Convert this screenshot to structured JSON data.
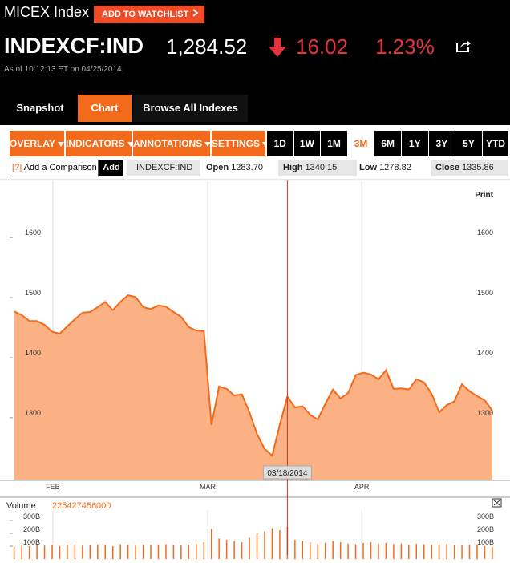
{
  "header": {
    "title": "MICEX Index",
    "watchlist_button": "ADD TO WATCHLIST",
    "ticker": "INDEXCF:IND",
    "price": "1,284.52",
    "change": "16.02",
    "change_pct": "1.23%",
    "timestamp": "As of 10:12:13 ET on 04/25/2014."
  },
  "tabs": [
    "Snapshot",
    "Chart",
    "Browse All Indexes"
  ],
  "toolbar": {
    "menus": [
      "OVERLAY",
      "INDICATORS",
      "ANNOTATIONS",
      "SETTINGS"
    ],
    "ranges": [
      "1D",
      "1W",
      "1M",
      "3M",
      "6M",
      "1Y",
      "3Y",
      "5Y",
      "YTD"
    ]
  },
  "comparison": {
    "help": "[?]",
    "placeholder": "Add a Comparison",
    "button": "Add",
    "symbol": "INDEXCF:IND"
  },
  "quote": {
    "open_label": "Open",
    "open": "1283.70",
    "high_label": "High",
    "high": "1340.15",
    "low_label": "Low",
    "low": "1278.82",
    "close_label": "Close",
    "close": "1335.86"
  },
  "chart": {
    "type": "area",
    "print_label": "Print",
    "color": "#f26a1b",
    "fill": "#fbb183",
    "values": [
      1477,
      1471,
      1461,
      1461,
      1455,
      1443,
      1440,
      1452,
      1464,
      1475,
      1476,
      1484,
      1493,
      1479,
      1493,
      1504,
      1501,
      1484,
      1481,
      1487,
      1485,
      1476,
      1468,
      1451,
      1445,
      1444,
      1288,
      1352,
      1348,
      1337,
      1339,
      1309,
      1273,
      1248,
      1237,
      1288,
      1335,
      1317,
      1319,
      1305,
      1297,
      1323,
      1347,
      1332,
      1341,
      1371,
      1375,
      1372,
      1364,
      1379,
      1348,
      1349,
      1347,
      1364,
      1359,
      1340,
      1309,
      1321,
      1327,
      1356,
      1344,
      1336,
      1329,
      1312
    ],
    "xlim": [
      -0.6,
      64.7
    ],
    "xticks": [
      {
        "value": 5.1,
        "label": "FEB"
      },
      {
        "value": 25.5,
        "label": "MAR"
      },
      {
        "value": 45.8,
        "label": "APR"
      }
    ],
    "ylim": [
      1197,
      1695
    ],
    "yticks": [
      1300,
      1400,
      1500,
      1600
    ],
    "cursor": {
      "x": 36,
      "label": "03/18/2014"
    },
    "volume": {
      "label": "Volume",
      "value": 225427456000,
      "values": [
        95,
        105,
        100,
        110,
        105,
        108,
        100,
        112,
        110,
        105,
        108,
        112,
        110,
        100,
        115,
        110,
        105,
        112,
        110,
        108,
        115,
        110,
        105,
        112,
        118,
        130,
        235,
        160,
        150,
        140,
        130,
        165,
        200,
        215,
        240,
        225,
        250,
        150,
        140,
        130,
        120,
        125,
        140,
        130,
        120,
        115,
        125,
        130,
        120,
        125,
        115,
        120,
        110,
        118,
        115,
        110,
        120,
        115,
        110,
        105,
        112,
        108,
        100,
        95
      ],
      "ylim": [
        0,
        356
      ],
      "yticks": [
        {
          "value": 100,
          "label": "100B"
        },
        {
          "value": 200,
          "label": "200B"
        },
        {
          "value": 300,
          "label": "300B"
        }
      ]
    }
  }
}
